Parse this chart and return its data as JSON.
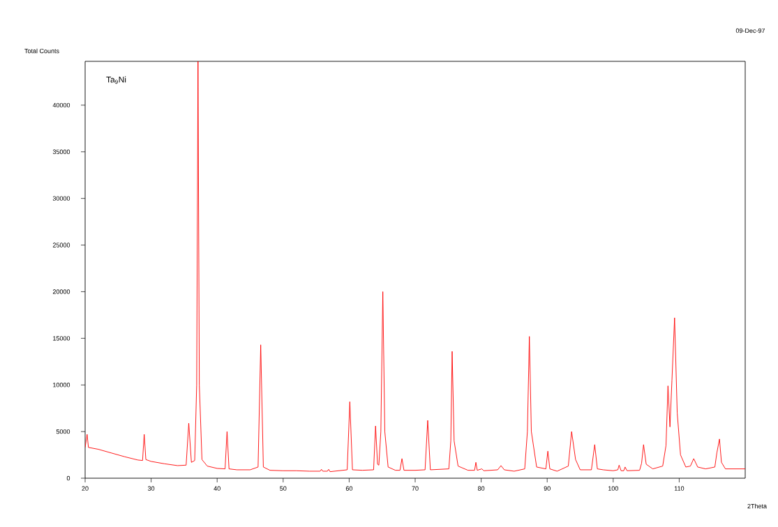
{
  "chart_data": {
    "type": "line",
    "xlabel": "2Theta",
    "ylabel": "Total Counts",
    "annotations": [
      "Ta$_{9}$Ni",
      "09-Dec-97"
    ],
    "color": "#ff0000",
    "xlim": [
      20,
      120
    ],
    "ylim": [
      0,
      44700
    ],
    "xticks": [
      20,
      30,
      40,
      50,
      60,
      70,
      80,
      90,
      100,
      110
    ],
    "yticks": [
      0,
      5000,
      10000,
      15000,
      20000,
      25000,
      30000,
      35000,
      40000
    ],
    "x": [
      20.0,
      20.3,
      20.5,
      22,
      24,
      26,
      28,
      28.7,
      28.95,
      29.2,
      30,
      32,
      34,
      35.3,
      35.7,
      36.1,
      36.6,
      36.9,
      37.1,
      37.3,
      37.7,
      38.5,
      40,
      41.2,
      41.5,
      41.8,
      43,
      45,
      46.2,
      46.6,
      47.0,
      48,
      50,
      52,
      54,
      55.6,
      55.8,
      56.0,
      56.7,
      56.9,
      57.1,
      59.7,
      60.1,
      60.5,
      62,
      63.7,
      64.0,
      64.3,
      64.5,
      64.8,
      65.1,
      65.4,
      65.9,
      67,
      67.7,
      68.0,
      68.3,
      70,
      71.5,
      71.9,
      72.3,
      75.1,
      75.4,
      75.6,
      75.9,
      76.5,
      78,
      79.0,
      79.2,
      79.4,
      80.1,
      80.4,
      82.5,
      83.0,
      83.5,
      85,
      86.6,
      87.0,
      87.3,
      87.6,
      88.4,
      89.8,
      90.1,
      90.4,
      91.5,
      93.2,
      93.7,
      94.3,
      95,
      96.7,
      97.2,
      97.6,
      98.5,
      100,
      100.7,
      100.9,
      101.2,
      101.6,
      101.8,
      102.1,
      104,
      104.3,
      104.6,
      105.0,
      106,
      107.5,
      108.0,
      108.3,
      108.6,
      108.9,
      109.3,
      109.7,
      110.2,
      111,
      111.7,
      112.2,
      112.8,
      114,
      115.4,
      115.7,
      116.1,
      116.4,
      117,
      118,
      120
    ],
    "values": [
      3300,
      4700,
      3300,
      3100,
      2700,
      2300,
      1950,
      1900,
      4700,
      2000,
      1800,
      1550,
      1350,
      1400,
      5900,
      1700,
      1900,
      10000,
      44700,
      10000,
      2000,
      1300,
      1050,
      1000,
      5000,
      1000,
      900,
      900,
      1200,
      14300,
      1200,
      850,
      800,
      800,
      750,
      750,
      950,
      750,
      750,
      950,
      700,
      900,
      8200,
      900,
      850,
      900,
      5600,
      1500,
      1400,
      5000,
      20000,
      5000,
      1200,
      850,
      850,
      2100,
      850,
      850,
      900,
      6200,
      900,
      1000,
      4000,
      13600,
      4000,
      1300,
      850,
      850,
      1700,
      850,
      1000,
      800,
      900,
      1350,
      900,
      750,
      1000,
      5000,
      15200,
      5000,
      1200,
      1000,
      2900,
      1000,
      750,
      1300,
      5000,
      2000,
      900,
      900,
      3600,
      1000,
      900,
      800,
      900,
      1400,
      800,
      800,
      1200,
      800,
      850,
      1600,
      3600,
      1500,
      1000,
      1300,
      3500,
      9900,
      5500,
      10500,
      17200,
      7000,
      2500,
      1200,
      1300,
      2100,
      1200,
      1000,
      1200,
      2700,
      4200,
      1700,
      1000,
      1000,
      1000
    ]
  }
}
